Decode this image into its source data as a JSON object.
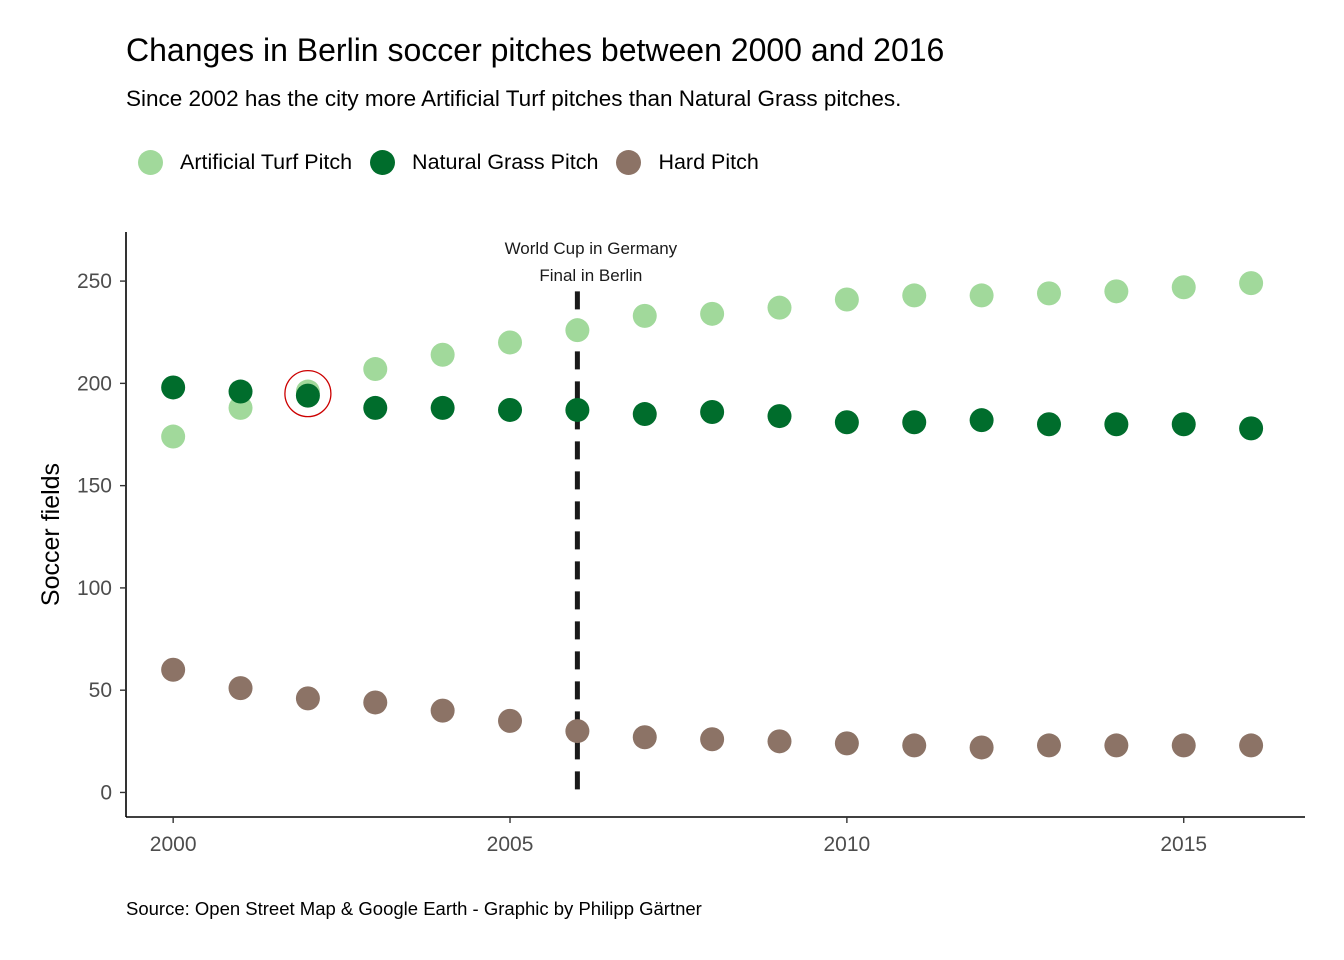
{
  "chart_data": {
    "type": "scatter",
    "title": "Changes in Berlin soccer pitches between 2000 and 2016",
    "subtitle": "Since 2002 has the city more Artificial Turf pitches than Natural Grass pitches.",
    "caption": "Source: Open Street Map & Google Earth - Graphic by Philipp Gärtner",
    "xlabel": "",
    "ylabel": "Soccer fields",
    "xlim": [
      1999.3,
      2016.8
    ],
    "ylim": [
      -12,
      274
    ],
    "xticks": [
      2000,
      2005,
      2010,
      2015
    ],
    "yticks": [
      0,
      50,
      100,
      150,
      200,
      250
    ],
    "grid": false,
    "legend_position": "top-left",
    "x": [
      2000,
      2001,
      2002,
      2003,
      2004,
      2005,
      2006,
      2007,
      2008,
      2009,
      2010,
      2011,
      2012,
      2013,
      2014,
      2015,
      2016
    ],
    "series": [
      {
        "name": "Artificial Turf Pitch",
        "color": "#a1d99b",
        "values": [
          174,
          188,
          196,
          207,
          214,
          220,
          226,
          233,
          234,
          237,
          241,
          243,
          243,
          244,
          245,
          247,
          249
        ]
      },
      {
        "name": "Natural Grass Pitch",
        "color": "#006d2c",
        "values": [
          198,
          196,
          194,
          188,
          188,
          187,
          187,
          185,
          186,
          184,
          181,
          181,
          182,
          180,
          180,
          180,
          178
        ]
      },
      {
        "name": "Hard Pitch",
        "color": "#8c7366",
        "values": [
          60,
          51,
          46,
          44,
          40,
          35,
          30,
          27,
          26,
          25,
          24,
          23,
          22,
          23,
          23,
          23,
          23
        ]
      }
    ],
    "vline": {
      "x": 2006,
      "y_top": 245,
      "y_bottom": 0,
      "style": "dashed",
      "color": "#1a1a1a"
    },
    "annotation": {
      "lines": [
        "World Cup in Germany",
        "Final in Berlin"
      ],
      "x": 2006.2
    },
    "highlight": {
      "x": 2002,
      "y": 195,
      "color": "#cc0000"
    }
  }
}
